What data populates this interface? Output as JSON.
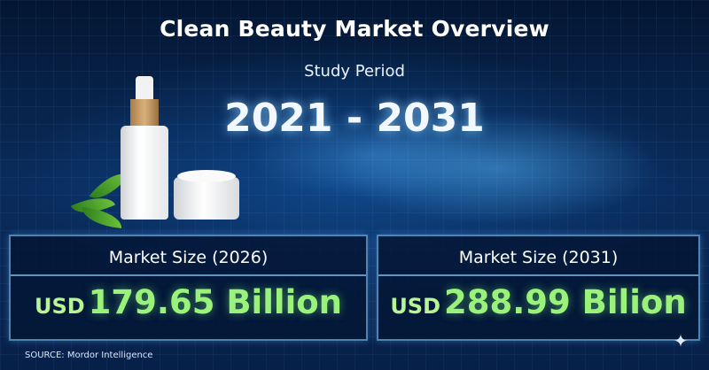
{
  "title": "Clean Beauty Market Overview",
  "study_period": {
    "label": "Study Period",
    "range": "2021 - 2031"
  },
  "panels": [
    {
      "label": "Market Size (2026)",
      "currency": "USD",
      "value": "179.65 Billion"
    },
    {
      "label": "Market Size (2031)",
      "currency": "USD",
      "value": "288.99 Bilion"
    }
  ],
  "source": "SOURCE: Mordor Intelligence",
  "colors": {
    "value_green": "#9af27a",
    "background": "#061a3a"
  }
}
